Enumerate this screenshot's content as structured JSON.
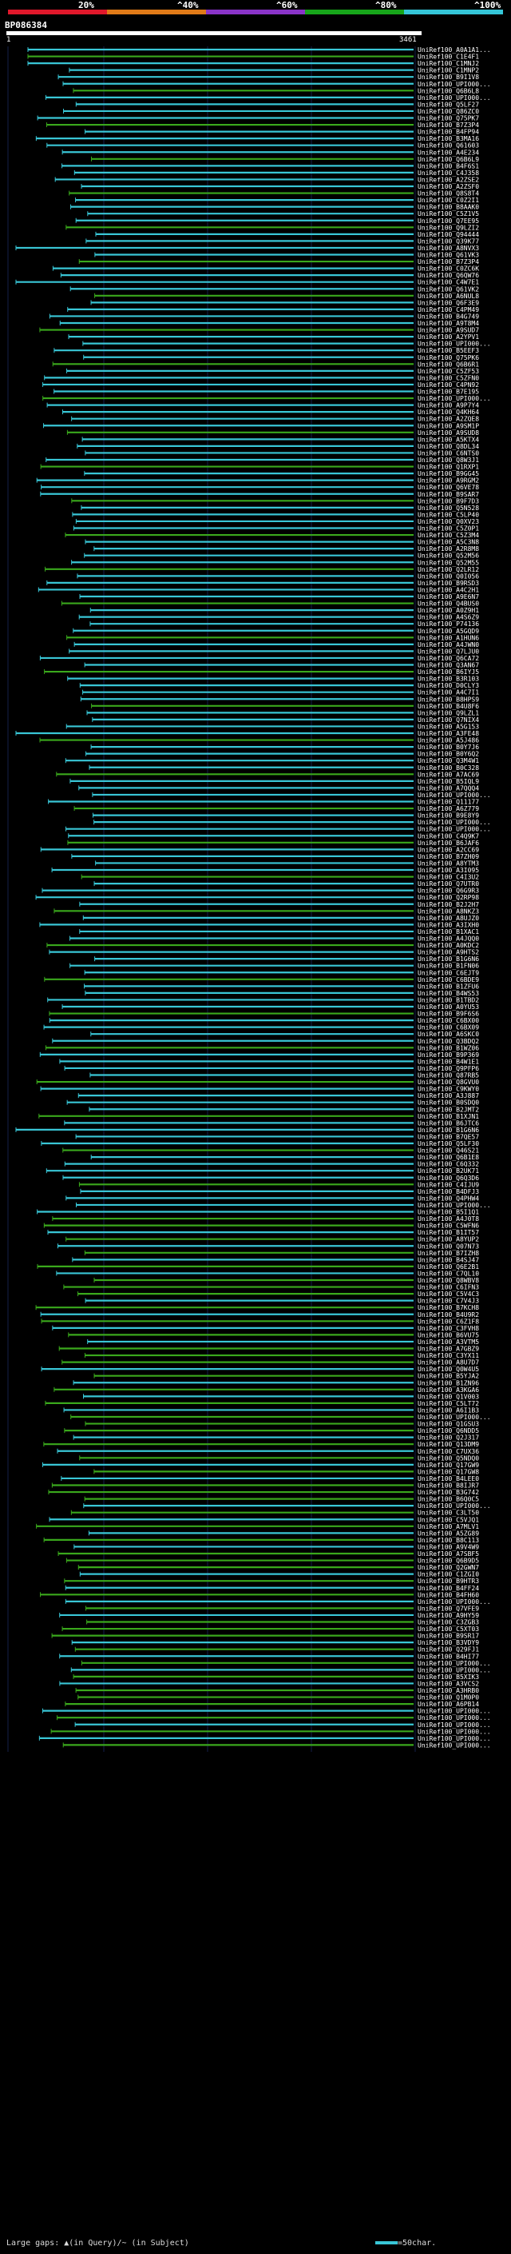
{
  "query": {
    "id": "BP086384",
    "start": "1",
    "end": "3461",
    "length": 3461
  },
  "scale_labels": [
    "20%",
    "^40%",
    "^60%",
    "^80%",
    "^100%"
  ],
  "scale_colors": [
    "#e0182b",
    "#e07a18",
    "#8a34c8",
    "#17a51a",
    "#35c6d8"
  ],
  "colors": {
    "cyan": "#39c6d6",
    "green": "#3aa81c",
    "white": "#ffffff"
  },
  "footer": {
    "text": "Large gaps: ▲(in Query)/~ (in Subject)",
    "legend": "=50char."
  },
  "hit_prefix": "UniRef100_",
  "hits": [
    "A0A1A1...",
    "C1E4F1",
    "C1MNJ2",
    "C1MNP2",
    "B9I1V8",
    "UPI000...",
    "Q6B6L8",
    "UPI000...",
    "Q5LF27",
    "Q86ZC0",
    "Q75PK7",
    "B7Z3P4",
    "B4FP94",
    "B3MA16",
    "Q61603",
    "A4E234",
    "Q6B6L9",
    "B4F6S1",
    "C4J358",
    "A2ZSE2",
    "A2ZSF0",
    "Q8S8T4",
    "C0Z2I1",
    "B8AAK0",
    "C5Z1V5",
    "Q7EE95",
    "Q9LZI2",
    "Q94444",
    "Q39K77",
    "A8NVX3",
    "Q61VK3",
    "B7Z3P4",
    "C0ZC6K",
    "Q6QW76",
    "C4W7E1",
    "Q61VK2",
    "A6NUL8",
    "Q6F3E9",
    "C4PM49",
    "B4G749",
    "A9T8M4",
    "A9SUD7",
    "A2YPV1",
    "UPI000...",
    "B5EEF3",
    "Q75PK6",
    "Q6B6R1",
    "C5ZF53",
    "C5ZFN0",
    "C4PN92",
    "B7E195",
    "UPI000...",
    "A9P7Y4",
    "Q4KH64",
    "A2ZQE8",
    "A9SM1P",
    "A9SUD8",
    "A5KTX4",
    "Q8DL34",
    "C6NTS0",
    "Q8W3J1",
    "Q1RXP1",
    "B9GG45",
    "A9RGM2",
    "Q6VE78",
    "B9SAR7",
    "B9F7D3",
    "Q5N528",
    "C5LP40",
    "Q0XV23",
    "C5Z0P1",
    "C5Z3M4",
    "A5C3N8",
    "A2R8M8",
    "Q52M56",
    "Q52M55",
    "Q2LR12",
    "Q0I056",
    "B9RSD3",
    "A4C2H1",
    "A9E6N7",
    "Q4BUS0",
    "A0Z9H1",
    "A4S6Z9",
    "P74136",
    "A5GQD9",
    "A1HUN6",
    "A4JWN0",
    "Q7LJU0",
    "Q6CA72",
    "Q3AN67",
    "B6IYJ5",
    "B3R103",
    "D0CLY3",
    "A4C7I1",
    "B8HPS9",
    "B4U8F6",
    "Q9LZL1",
    "Q7NIX4",
    "A5G153",
    "A3FE48",
    "A5J486",
    "B0Y7J6",
    "B0Y6Q2",
    "Q3M4W1",
    "B0C328",
    "A7AC69",
    "B5IQL9",
    "A7QQQ4",
    "UPI000...",
    "Q11177",
    "A6Z779",
    "B9E8Y9",
    "UPI000...",
    "UPI000...",
    "C4Q9K7",
    "B6JAF6",
    "A2CC69",
    "B7ZH09",
    "A8YTM3",
    "A3I095",
    "C4I3U2",
    "Q7UTR0",
    "Q6G9R3",
    "Q2RP98",
    "B2J2H7",
    "A8NKZ3",
    "A8UJZ0",
    "A3IXH0",
    "B1XAC1",
    "A4JQQ0",
    "A0KDC2",
    "A9HTS2",
    "B1G6N6",
    "B1FN06",
    "C6EJT9",
    "C6BDE9",
    "B1ZFU6",
    "B4WS53",
    "B1TBD2",
    "A0YU53",
    "B9F6S6",
    "C6BX00",
    "C6BX09",
    "A6SKC0",
    "Q3BDQ2",
    "B1WZ06",
    "B9P369",
    "B4W1E1",
    "Q9PFP6",
    "Q87RB5",
    "Q8GVU0",
    "C9KWY0",
    "A3J887",
    "B0SDQ0",
    "B2JMT2",
    "B1XJN1",
    "B6JTC6",
    "B1G6N6",
    "B7QE57",
    "Q5LF30",
    "Q46S21",
    "Q6B1E8",
    "C6Q332",
    "B2UK71",
    "Q6Q3D6",
    "C4IJU9",
    "B4DFJ3",
    "Q4PHW4",
    "UPI000...",
    "B5I1Q1",
    "A4J0T8",
    "C5WFN6",
    "B1IT57",
    "A8YUP2",
    "Q07N73",
    "B7IZH8",
    "B4SJ47",
    "Q6E2B1",
    "C7QL10",
    "Q8WBV8",
    "C6IFN3",
    "C5V4C3",
    "C7V4J3",
    "B7KCH8",
    "B4U9R2",
    "C6Z1F8",
    "C3FVH8",
    "B6VU75",
    "A3VTM5",
    "A7GBZ9",
    "C3YX11",
    "A8U7D7",
    "Q0W4U5",
    "B5YJA2",
    "B1ZN96",
    "A3KGA6",
    "Q1V003",
    "C5LT72",
    "A6I1B3",
    "UPI000...",
    "Q1GSU3",
    "Q6NDD5",
    "Q2J317",
    "Q13DM9",
    "C7UX36",
    "Q5NDQ0",
    "Q17GW9",
    "Q17GW8",
    "B4LEE0",
    "B8IJR7",
    "B3G742",
    "B6Q0C5",
    "UPI000...",
    "C3LT50",
    "C5VJQ1",
    "A7MLV1",
    "A5ZG89",
    "B8C113",
    "A9V4W9",
    "A7SBF5",
    "Q6B9D5",
    "Q2GWN7",
    "C1ZGI0",
    "B9HTR3",
    "B4FF24",
    "B4FH60",
    "UPI000...",
    "Q7VFE9",
    "A9HY59",
    "C3ZGB3",
    "C5XT03",
    "B9SR17",
    "B3VDY9",
    "Q29FJ1",
    "B4HI77",
    "UPI000...",
    "UPI000...",
    "B5XIK3",
    "A3VCS2",
    "A3HRB0",
    "Q1M0P0",
    "A6PB14",
    "UPI000...",
    "UPI000...",
    "UPI000...",
    "UPI000...",
    "UPI000...",
    "UPI000..."
  ]
}
